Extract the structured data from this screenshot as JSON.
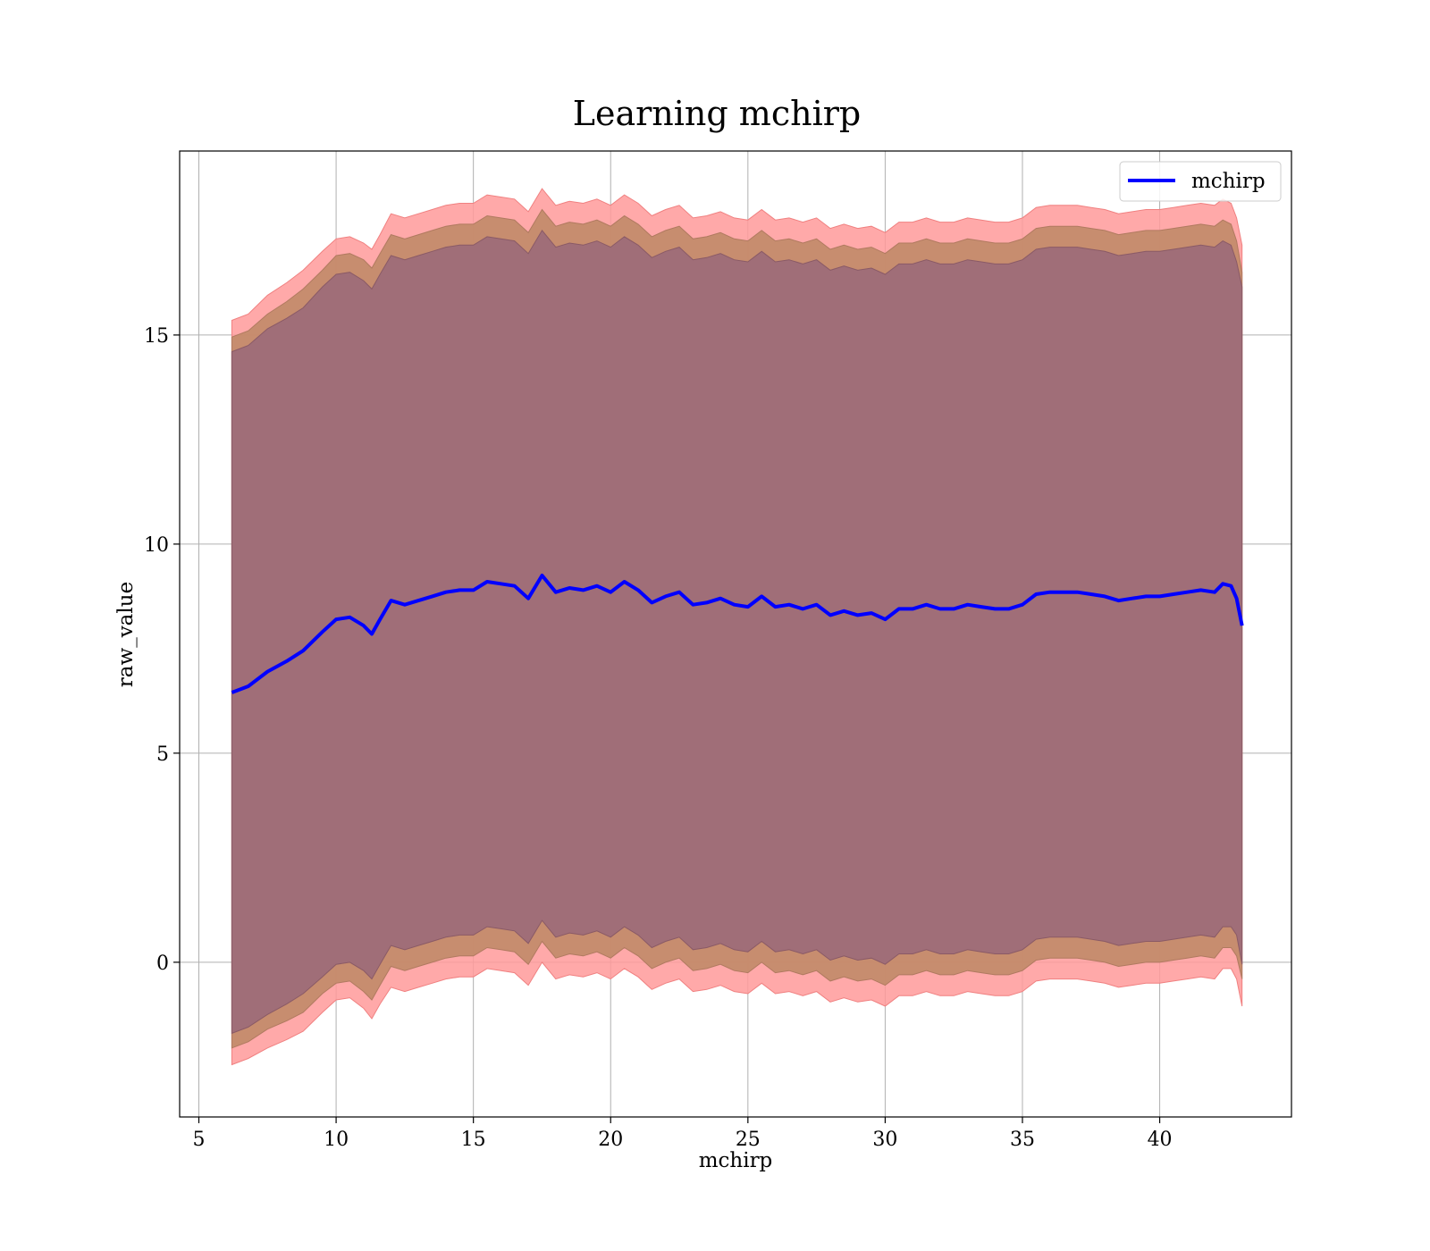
{
  "chart_data": {
    "type": "line",
    "title": "Learning mchirp",
    "xlabel": "mchirp",
    "ylabel": "raw_value",
    "xlim": [
      4.3,
      44.8
    ],
    "ylim": [
      -3.7,
      19.4
    ],
    "xticks": [
      5,
      10,
      15,
      20,
      25,
      30,
      35,
      40
    ],
    "yticks": [
      0,
      5,
      10,
      15
    ],
    "grid": true,
    "legend": {
      "position": "top-right"
    },
    "colors": {
      "line": "#0000ff",
      "band_outer": "#ff9a9a",
      "band_middle": "#c48b6c",
      "band_inner": "#a06e78",
      "grid": "#b0b0b0",
      "axes": "#000000"
    },
    "series": [
      {
        "name": "mchirp",
        "x": [
          6.2,
          6.8,
          7.5,
          8.2,
          8.8,
          9.5,
          10.0,
          10.5,
          11.0,
          11.3,
          11.6,
          12.0,
          12.5,
          13.0,
          13.5,
          14.0,
          14.5,
          15.0,
          15.5,
          16.0,
          16.5,
          17.0,
          17.5,
          18.0,
          18.5,
          19.0,
          19.5,
          20.0,
          20.5,
          21.0,
          21.5,
          22.0,
          22.5,
          23.0,
          23.5,
          24.0,
          24.5,
          25.0,
          25.5,
          26.0,
          26.5,
          27.0,
          27.5,
          28.0,
          28.5,
          29.0,
          29.5,
          30.0,
          30.5,
          31.0,
          31.5,
          32.0,
          32.5,
          33.0,
          33.5,
          34.0,
          34.5,
          35.0,
          35.5,
          36.0,
          36.5,
          37.0,
          37.5,
          38.0,
          38.5,
          39.0,
          39.5,
          40.0,
          40.5,
          41.0,
          41.5,
          42.0,
          42.3,
          42.6,
          42.8,
          43.0
        ],
        "y": [
          6.45,
          6.6,
          6.95,
          7.2,
          7.45,
          7.9,
          8.2,
          8.25,
          8.05,
          7.85,
          8.2,
          8.65,
          8.55,
          8.65,
          8.75,
          8.85,
          8.9,
          8.9,
          9.1,
          9.05,
          9.0,
          8.7,
          9.25,
          8.85,
          8.95,
          8.9,
          9.0,
          8.85,
          9.1,
          8.9,
          8.6,
          8.75,
          8.85,
          8.55,
          8.6,
          8.7,
          8.55,
          8.5,
          8.75,
          8.5,
          8.55,
          8.45,
          8.55,
          8.3,
          8.4,
          8.3,
          8.35,
          8.2,
          8.45,
          8.45,
          8.55,
          8.45,
          8.45,
          8.55,
          8.5,
          8.45,
          8.45,
          8.55,
          8.8,
          8.85,
          8.85,
          8.85,
          8.8,
          8.75,
          8.65,
          8.7,
          8.75,
          8.75,
          8.8,
          8.85,
          8.9,
          8.85,
          9.05,
          9.0,
          8.7,
          8.05
        ],
        "band_outer": [
          8.9,
          8.9,
          9.0,
          9.05,
          9.1,
          9.1,
          9.1,
          9.1,
          9.15,
          9.2,
          9.2,
          9.25,
          9.25,
          9.25,
          9.25,
          9.25,
          9.25,
          9.25,
          9.25,
          9.25,
          9.25,
          9.25,
          9.25,
          9.25,
          9.25,
          9.25,
          9.25,
          9.25,
          9.25,
          9.25,
          9.25,
          9.25,
          9.25,
          9.25,
          9.25,
          9.25,
          9.25,
          9.25,
          9.25,
          9.25,
          9.25,
          9.25,
          9.25,
          9.25,
          9.25,
          9.25,
          9.25,
          9.25,
          9.25,
          9.25,
          9.25,
          9.25,
          9.25,
          9.25,
          9.25,
          9.25,
          9.25,
          9.25,
          9.25,
          9.25,
          9.25,
          9.25,
          9.25,
          9.25,
          9.25,
          9.25,
          9.25,
          9.25,
          9.25,
          9.25,
          9.25,
          9.25,
          9.2,
          9.15,
          9.1,
          9.1
        ],
        "band_middle": [
          8.5,
          8.5,
          8.55,
          8.6,
          8.65,
          8.65,
          8.7,
          8.7,
          8.75,
          8.75,
          8.75,
          8.75,
          8.75,
          8.75,
          8.75,
          8.75,
          8.75,
          8.75,
          8.75,
          8.75,
          8.75,
          8.75,
          8.75,
          8.75,
          8.75,
          8.75,
          8.75,
          8.75,
          8.75,
          8.75,
          8.75,
          8.75,
          8.75,
          8.75,
          8.75,
          8.75,
          8.75,
          8.75,
          8.75,
          8.75,
          8.75,
          8.75,
          8.75,
          8.75,
          8.75,
          8.75,
          8.75,
          8.75,
          8.75,
          8.75,
          8.75,
          8.75,
          8.75,
          8.75,
          8.75,
          8.75,
          8.75,
          8.75,
          8.75,
          8.75,
          8.75,
          8.75,
          8.75,
          8.75,
          8.75,
          8.75,
          8.75,
          8.75,
          8.75,
          8.75,
          8.75,
          8.75,
          8.7,
          8.65,
          8.55,
          8.45
        ],
        "band_inner": [
          8.15,
          8.15,
          8.2,
          8.2,
          8.2,
          8.25,
          8.25,
          8.25,
          8.25,
          8.25,
          8.25,
          8.25,
          8.25,
          8.25,
          8.25,
          8.25,
          8.25,
          8.25,
          8.25,
          8.25,
          8.25,
          8.25,
          8.25,
          8.25,
          8.25,
          8.25,
          8.25,
          8.25,
          8.25,
          8.25,
          8.25,
          8.25,
          8.25,
          8.25,
          8.25,
          8.25,
          8.25,
          8.25,
          8.25,
          8.25,
          8.25,
          8.25,
          8.25,
          8.25,
          8.25,
          8.25,
          8.25,
          8.25,
          8.25,
          8.25,
          8.25,
          8.25,
          8.25,
          8.25,
          8.25,
          8.25,
          8.25,
          8.25,
          8.25,
          8.25,
          8.25,
          8.25,
          8.25,
          8.25,
          8.25,
          8.25,
          8.25,
          8.25,
          8.25,
          8.25,
          8.25,
          8.25,
          8.2,
          8.15,
          8.05,
          8.1
        ]
      }
    ]
  }
}
